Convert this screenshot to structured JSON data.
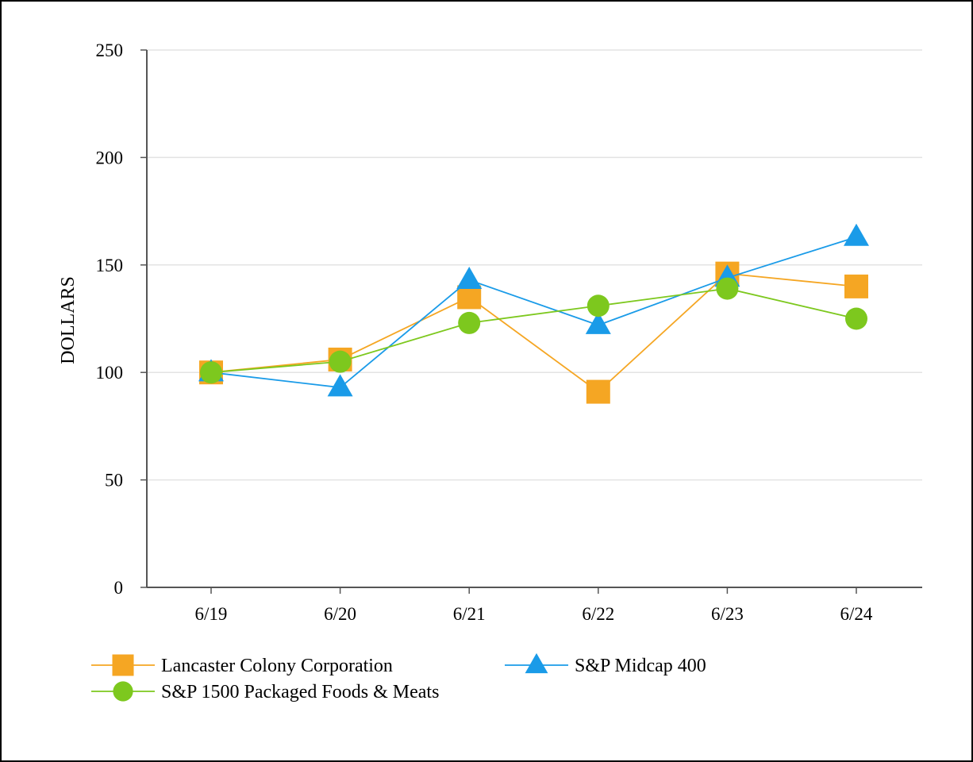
{
  "chart_data": {
    "type": "line",
    "title": "",
    "xlabel": "",
    "ylabel": "DOLLARS",
    "ylim": [
      0,
      250
    ],
    "yticks": [
      0,
      50,
      100,
      150,
      200,
      250
    ],
    "grid": true,
    "legend_position": "bottom",
    "categories": [
      "6/19",
      "6/20",
      "6/21",
      "6/22",
      "6/23",
      "6/24"
    ],
    "series": [
      {
        "name": "Lancaster Colony Corporation",
        "color": "#f5a623",
        "marker": "square",
        "values": [
          100,
          106,
          135,
          91,
          146,
          140
        ]
      },
      {
        "name": "S&P Midcap 400",
        "color": "#1a9be8",
        "marker": "triangle",
        "values": [
          100,
          93,
          143,
          122,
          144,
          163
        ]
      },
      {
        "name": "S&P 1500 Packaged Foods & Meats",
        "color": "#7dc81e",
        "marker": "circle",
        "values": [
          100,
          105,
          123,
          131,
          139,
          125
        ]
      }
    ]
  }
}
